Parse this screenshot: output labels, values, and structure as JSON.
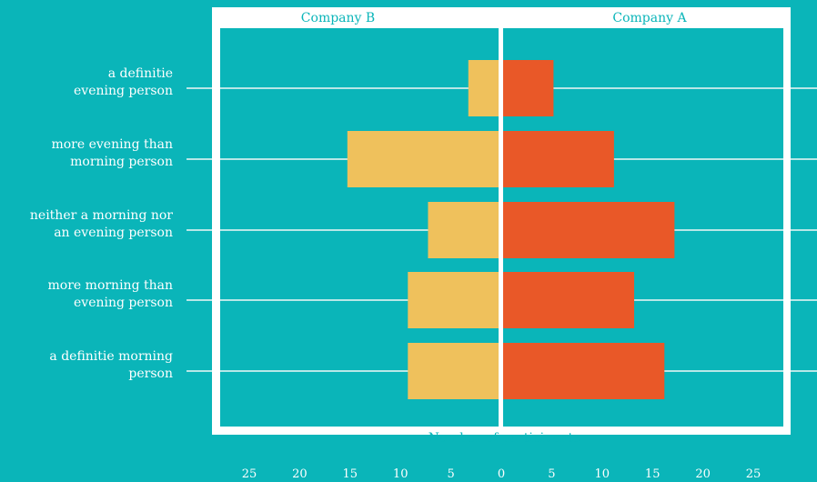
{
  "chart_data": {
    "type": "bar",
    "orientation": "horizontal-diverging",
    "categories": [
      "a definitie evening person",
      "more evening than morning person",
      "neither a morning nor an evening person",
      "more morning than evening person",
      "a definitie morning person"
    ],
    "category_lines": [
      [
        "a definitie",
        "evening person"
      ],
      [
        "more evening than",
        "morning person"
      ],
      [
        "neither a morning nor",
        "an evening person"
      ],
      [
        "more morning than",
        "evening person"
      ],
      [
        "a definitie morning",
        "person"
      ]
    ],
    "series": [
      {
        "name": "Company B",
        "values": [
          3,
          15,
          7,
          9,
          9
        ],
        "side": "left"
      },
      {
        "name": "Company A",
        "values": [
          5,
          11,
          17,
          13,
          16
        ],
        "side": "right"
      }
    ],
    "xlabel": "Number of participants",
    "x_ticks": [
      "25",
      "20",
      "15",
      "10",
      "5",
      "0",
      "5",
      "10",
      "15",
      "20",
      "25"
    ],
    "xlim": [
      -28,
      28
    ],
    "grid": true,
    "legend": "panel titles at top"
  },
  "colors": {
    "background": "#0ab5b9",
    "company_b": "#efc15c",
    "company_a": "#e95828",
    "frame": "#ffffff",
    "gridline": "#b7e7e7",
    "text": "#ffffff"
  }
}
